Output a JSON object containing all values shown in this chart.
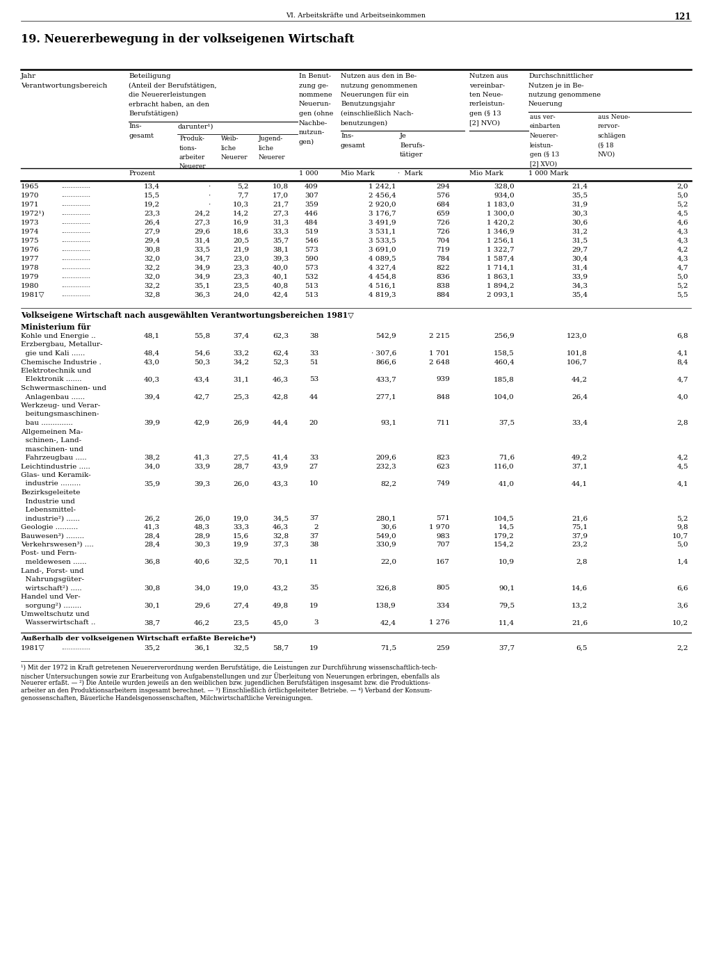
{
  "page_header": "VI. Arbeitskräfte und Arbeitseinkommen",
  "page_number": "121",
  "title": "19. Neuererbewegung in der volkseigenen Wirtschaft",
  "years_data": [
    [
      "1965",
      "13,4",
      "·",
      "5,2",
      "10,8",
      "409",
      "1 242,1",
      "294",
      "328,0",
      "21,4",
      "2,0"
    ],
    [
      "1970",
      "15,5",
      "·",
      "7,7",
      "17,0",
      "307",
      "2 456,4",
      "576",
      "934,0",
      "35,5",
      "5,0"
    ],
    [
      "1971",
      "19,2",
      "·",
      "10,3",
      "21,7",
      "359",
      "2 920,0",
      "684",
      "1 183,0",
      "31,9",
      "5,2"
    ],
    [
      "1972¹)",
      "23,3",
      "24,2",
      "14,2",
      "27,3",
      "446",
      "3 176,7",
      "659",
      "1 300,0",
      "30,3",
      "4,5"
    ],
    [
      "1973",
      "26,4",
      "27,3",
      "16,9",
      "31,3",
      "484",
      "3 491,9",
      "726",
      "1 420,2",
      "30,6",
      "4,6"
    ],
    [
      "1974",
      "27,9",
      "29,6",
      "18,6",
      "33,3",
      "519",
      "3 531,1",
      "726",
      "1 346,9",
      "31,2",
      "4,3"
    ],
    [
      "1975",
      "29,4",
      "31,4",
      "20,5",
      "35,7",
      "546",
      "3 533,5",
      "704",
      "1 256,1",
      "31,5",
      "4,3"
    ],
    [
      "1976",
      "30,8",
      "33,5",
      "21,9",
      "38,1",
      "573",
      "3 691,0",
      "719",
      "1 322,7",
      "29,7",
      "4,2"
    ],
    [
      "1977",
      "32,0",
      "34,7",
      "23,0",
      "39,3",
      "590",
      "4 089,5",
      "784",
      "1 587,4",
      "30,4",
      "4,3"
    ],
    [
      "1978",
      "32,2",
      "34,9",
      "23,3",
      "40,0",
      "573",
      "4 327,4",
      "822",
      "1 714,1",
      "31,4",
      "4,7"
    ],
    [
      "1979",
      "32,0",
      "34,9",
      "23,3",
      "40,1",
      "532",
      "4 454,8",
      "836",
      "1 863,1",
      "33,9",
      "5,0"
    ],
    [
      "1980",
      "32,2",
      "35,1",
      "23,5",
      "40,8",
      "513",
      "4 516,1",
      "838",
      "1 894,2",
      "34,3",
      "5,2"
    ],
    [
      "1981▽",
      "32,8",
      "36,3",
      "24,0",
      "42,4",
      "513",
      "4 819,3",
      "884",
      "2 093,1",
      "35,4",
      "5,5"
    ]
  ],
  "section2_title": "Volkseigene Wirtschaft nach ausgewählten Verantwortungsbereichen 1981▽",
  "section2_subtitle": "Ministerium für",
  "section2_data": [
    [
      "Kohle und Energie ..",
      "48,1",
      "55,8",
      "37,4",
      "62,3",
      "38",
      "542,9",
      "2 215",
      "256,9",
      "123,0",
      "6,8"
    ],
    [
      "Erzbergbau, Metallur-",
      "",
      "",
      "",
      "",
      "",
      "",
      "",
      "",
      "",
      ""
    ],
    [
      "  gie und Kali ......",
      "48,4",
      "54,6",
      "33,2",
      "62,4",
      "33",
      "· 307,6",
      "1 701",
      "158,5",
      "101,8",
      "4,1"
    ],
    [
      "Chemische Industrie .",
      "43,0",
      "50,3",
      "34,2",
      "52,3",
      "51",
      "866,6",
      "2 648",
      "460,4",
      "106,7",
      "8,4"
    ],
    [
      "Elektrotechnik und",
      "",
      "",
      "",
      "",
      "",
      "",
      "",
      "",
      "",
      ""
    ],
    [
      "  Elektronik .......",
      "40,3",
      "43,4",
      "31,1",
      "46,3",
      "53",
      "433,7",
      "939",
      "185,8",
      "44,2",
      "4,7"
    ],
    [
      "Schwermaschinen- und",
      "",
      "",
      "",
      "",
      "",
      "",
      "",
      "",
      "",
      ""
    ],
    [
      "  Anlagenbau ......",
      "39,4",
      "42,7",
      "25,3",
      "42,8",
      "44",
      "277,1",
      "848",
      "104,0",
      "26,4",
      "4,0"
    ],
    [
      "Werkzeug- und Verar-",
      "",
      "",
      "",
      "",
      "",
      "",
      "",
      "",
      "",
      ""
    ],
    [
      "  beitungsmaschinen-",
      "",
      "",
      "",
      "",
      "",
      "",
      "",
      "",
      "",
      ""
    ],
    [
      "  bau ..............",
      "39,9",
      "42,9",
      "26,9",
      "44,4",
      "20",
      "93,1",
      "711",
      "37,5",
      "33,4",
      "2,8"
    ],
    [
      "Allgemeinen Ma-",
      "",
      "",
      "",
      "",
      "",
      "",
      "",
      "",
      "",
      ""
    ],
    [
      "  schinen-, Land-",
      "",
      "",
      "",
      "",
      "",
      "",
      "",
      "",
      "",
      ""
    ],
    [
      "  maschinen- und",
      "",
      "",
      "",
      "",
      "",
      "",
      "",
      "",
      "",
      ""
    ],
    [
      "  Fahrzeugbau .....",
      "38,2",
      "41,3",
      "27,5",
      "41,4",
      "33",
      "209,6",
      "823",
      "71,6",
      "49,2",
      "4,2"
    ],
    [
      "Leichtindustrie .....",
      "34,0",
      "33,9",
      "28,7",
      "43,9",
      "27",
      "232,3",
      "623",
      "116,0",
      "37,1",
      "4,5"
    ],
    [
      "Glas- und Keramik-",
      "",
      "",
      "",
      "",
      "",
      "",
      "",
      "",
      "",
      ""
    ],
    [
      "  industrie .........",
      "35,9",
      "39,3",
      "26,0",
      "43,3",
      "10",
      "82,2",
      "749",
      "41,0",
      "44,1",
      "4,1"
    ],
    [
      "Bezirksgeleitete",
      "",
      "",
      "",
      "",
      "",
      "",
      "",
      "",
      "",
      ""
    ],
    [
      "  Industrie und",
      "",
      "",
      "",
      "",
      "",
      "",
      "",
      "",
      "",
      ""
    ],
    [
      "  Lebensmittel-",
      "",
      "",
      "",
      "",
      "",
      "",
      "",
      "",
      "",
      ""
    ],
    [
      "  industrie²) ......",
      "26,2",
      "26,0",
      "19,0",
      "34,5",
      "37",
      "280,1",
      "571",
      "104,5",
      "21,6",
      "5,2"
    ],
    [
      "Geologie ..........",
      "41,3",
      "48,3",
      "33,3",
      "46,3",
      "2",
      "30,6",
      "1 970",
      "14,5",
      "75,1",
      "9,8"
    ],
    [
      "Bauwesen³) ........",
      "28,4",
      "28,9",
      "15,6",
      "32,8",
      "37",
      "549,0",
      "983",
      "179,2",
      "37,9",
      "10,7"
    ],
    [
      "Verkehrswesen³) ....",
      "28,4",
      "30,3",
      "19,9",
      "37,3",
      "38",
      "330,9",
      "707",
      "154,2",
      "23,2",
      "5,0"
    ],
    [
      "Post- und Fern-",
      "",
      "",
      "",
      "",
      "",
      "",
      "",
      "",
      "",
      ""
    ],
    [
      "  meldewesen ......",
      "36,8",
      "40,6",
      "32,5",
      "70,1",
      "11",
      "22,0",
      "167",
      "10,9",
      "2,8",
      "1,4"
    ],
    [
      "Land-, Forst- und",
      "",
      "",
      "",
      "",
      "",
      "",
      "",
      "",
      "",
      ""
    ],
    [
      "  Nahrungsgüter-",
      "",
      "",
      "",
      "",
      "",
      "",
      "",
      "",
      "",
      ""
    ],
    [
      "  wirtschaft²) .....",
      "30,8",
      "34,0",
      "19,0",
      "43,2",
      "35",
      "326,8",
      "805",
      "90,1",
      "14,6",
      "6,6"
    ],
    [
      "Handel und Ver-",
      "",
      "",
      "",
      "",
      "",
      "",
      "",
      "",
      "",
      ""
    ],
    [
      "  sorgung²) ........",
      "30,1",
      "29,6",
      "27,4",
      "49,8",
      "19",
      "138,9",
      "334",
      "79,5",
      "13,2",
      "3,6"
    ],
    [
      "Umweltschutz und",
      "",
      "",
      "",
      "",
      "",
      "",
      "",
      "",
      "",
      ""
    ],
    [
      "  Wasserwirtschaft ..",
      "38,7",
      "46,2",
      "23,5",
      "45,0",
      "3",
      "42,4",
      "1 276",
      "11,4",
      "21,6",
      "10,2"
    ]
  ],
  "section3_title": "Außerhalb der volkseigenen Wirtschaft erfaßte Bereiche⁴)",
  "section3_data": [
    [
      "1981▽",
      "35,2",
      "36,1",
      "32,5",
      "58,7",
      "19",
      "71,5",
      "259",
      "37,7",
      "6,5",
      "2,2"
    ]
  ],
  "footnotes": [
    "¹) Mit der 1972 in Kraft getretenen Neuererverordnung werden Berufstätige, die Leistungen zur Durchführung wissenschaftlich-tech-",
    "nischer Untersuchungen sowie zur Erarbeitung von Aufgabenstellungen und zur Überleitung von Neuerungen erbringen, ebenfalls als",
    "Neuerer erfaßt. — ²) Die Anteile wurden jeweils an den weiblichen bzw. jugendlichen Berufstätigen insgesamt bzw. die Produktions-",
    "arbeiter an den Produktionsarbeitern insgesamt berechnet. — ³) Einschließlich örtlichgeleiteter Betriebe. — ⁴) Verband der Konsum-",
    "genossenschaften, Bäuerliche Handelsgenossenschaften, Milchwirtschaftliche Vereinigungen."
  ]
}
